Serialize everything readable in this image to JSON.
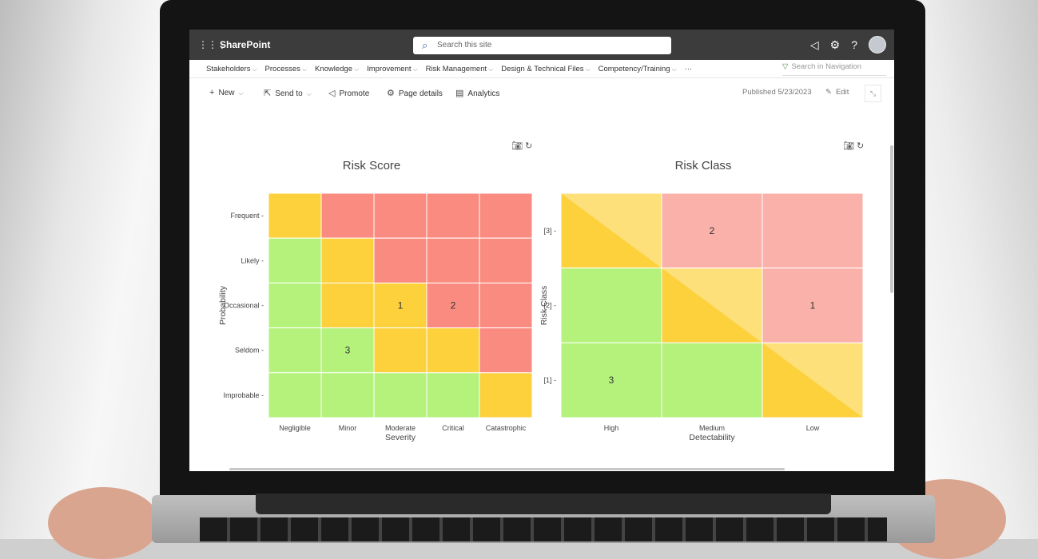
{
  "app": {
    "brand": "SharePoint",
    "search_placeholder": "Search this site",
    "nav": [
      {
        "label": "Stakeholders"
      },
      {
        "label": "Processes"
      },
      {
        "label": "Knowledge"
      },
      {
        "label": "Improvement"
      },
      {
        "label": "Risk Management"
      },
      {
        "label": "Design & Technical Files"
      },
      {
        "label": "Competency/Training"
      },
      {
        "label": "···"
      }
    ],
    "nav_search_placeholder": "Search in Navigation",
    "commands": {
      "new": "New",
      "send_to": "Send to",
      "promote": "Promote",
      "page_details": "Page details",
      "analytics": "Analytics"
    },
    "published": "Published 5/23/2023",
    "edit": "Edit"
  },
  "chart_data": [
    {
      "type": "heatmap",
      "title": "Risk Score",
      "xlabel": "Severity",
      "ylabel": "Probability",
      "x_categories": [
        "Negligible",
        "Minor",
        "Moderate",
        "Critical",
        "Catastrophic"
      ],
      "y_categories": [
        "Frequent",
        "Likely",
        "Occasional",
        "Seldom",
        "Improbable"
      ],
      "cell_colors": [
        [
          "yellow",
          "red",
          "red",
          "red",
          "red"
        ],
        [
          "green",
          "yellow",
          "red",
          "red",
          "red"
        ],
        [
          "green",
          "yellow",
          "yellow",
          "red",
          "red"
        ],
        [
          "green",
          "green",
          "yellow",
          "yellow",
          "red"
        ],
        [
          "green",
          "green",
          "green",
          "green",
          "yellow"
        ]
      ],
      "annotations": [
        {
          "x": "Moderate",
          "y": "Occasional",
          "text": "1"
        },
        {
          "x": "Critical",
          "y": "Occasional",
          "text": "2"
        },
        {
          "x": "Minor",
          "y": "Seldom",
          "text": "3"
        }
      ]
    },
    {
      "type": "heatmap",
      "title": "Risk Class",
      "xlabel": "Detectability",
      "ylabel": "Risk Class",
      "x_categories": [
        "High",
        "Medium",
        "Low"
      ],
      "y_categories": [
        "[3]",
        "[2]",
        "[1]"
      ],
      "cell_colors": [
        [
          "yellow",
          "red",
          "red"
        ],
        [
          "green",
          "yellow",
          "red"
        ],
        [
          "green",
          "green",
          "yellow"
        ]
      ],
      "annotations": [
        {
          "x": "Medium",
          "y": "[3]",
          "text": "2"
        },
        {
          "x": "Low",
          "y": "[2]",
          "text": "1"
        },
        {
          "x": "High",
          "y": "[1]",
          "text": "3"
        }
      ]
    }
  ],
  "colors": {
    "green": "#b4f27c",
    "yellow": "#fcd13c",
    "red": "#f98b80",
    "yellow_light": "#fde07a",
    "red_light": "#fab1aa",
    "topbar": "#3c3c3c"
  }
}
